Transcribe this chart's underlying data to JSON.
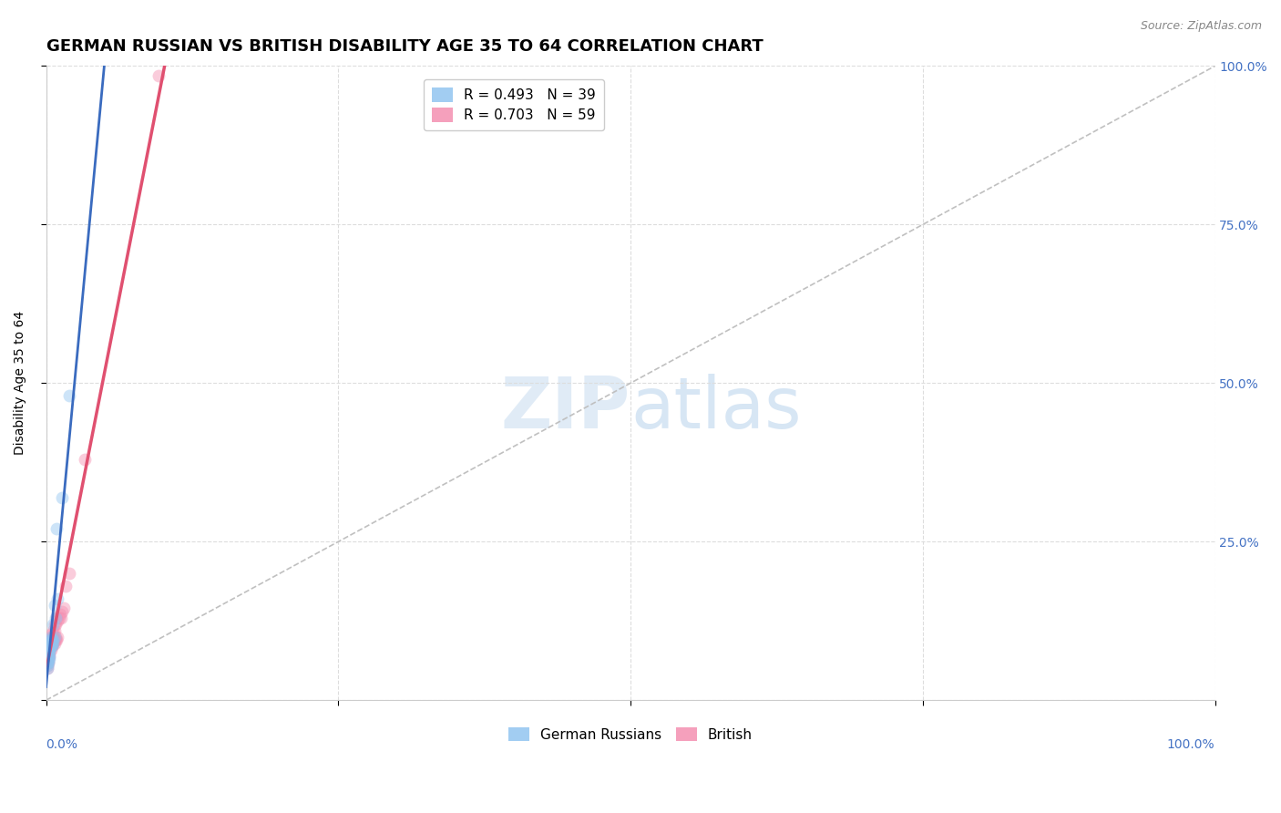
{
  "title": "GERMAN RUSSIAN VS BRITISH DISABILITY AGE 35 TO 64 CORRELATION CHART",
  "source": "Source: ZipAtlas.com",
  "ylabel": "Disability Age 35 to 64",
  "watermark": "ZIPatlas",
  "legend_corr": [
    {
      "label": "R = 0.493   N = 39",
      "color": "#92C5F0"
    },
    {
      "label": "R = 0.703   N = 59",
      "color": "#F48FB1"
    }
  ],
  "legend_scatter": [
    {
      "label": "German Russians",
      "color": "#92C5F0"
    },
    {
      "label": "British",
      "color": "#F48FB1"
    }
  ],
  "german_russian_color": "#92C5F0",
  "british_color": "#F48FB1",
  "trendline_german_color": "#3A6BBF",
  "trendline_british_color": "#E05070",
  "diagonal_color": "#C0C0C0",
  "background_color": "#FFFFFF",
  "grid_color": "#DDDDDD",
  "right_axis_color": "#4472C4",
  "xlim": [
    0.0,
    1.0
  ],
  "ylim": [
    0.0,
    1.0
  ],
  "german_russian_x": [
    0.001,
    0.001,
    0.001,
    0.001,
    0.001,
    0.001,
    0.002,
    0.002,
    0.002,
    0.002,
    0.002,
    0.002,
    0.002,
    0.002,
    0.003,
    0.003,
    0.003,
    0.003,
    0.003,
    0.003,
    0.003,
    0.003,
    0.004,
    0.004,
    0.004,
    0.004,
    0.005,
    0.005,
    0.005,
    0.006,
    0.006,
    0.006,
    0.007,
    0.007,
    0.008,
    0.009,
    0.01,
    0.014,
    0.02
  ],
  "german_russian_y": [
    0.05,
    0.055,
    0.06,
    0.06,
    0.065,
    0.07,
    0.06,
    0.065,
    0.07,
    0.075,
    0.08,
    0.08,
    0.085,
    0.09,
    0.065,
    0.07,
    0.075,
    0.08,
    0.085,
    0.085,
    0.09,
    0.095,
    0.085,
    0.09,
    0.095,
    0.1,
    0.085,
    0.09,
    0.095,
    0.09,
    0.095,
    0.12,
    0.1,
    0.15,
    0.13,
    0.27,
    0.16,
    0.32,
    0.48
  ],
  "british_x": [
    0.001,
    0.001,
    0.001,
    0.001,
    0.001,
    0.001,
    0.001,
    0.001,
    0.001,
    0.001,
    0.001,
    0.002,
    0.002,
    0.002,
    0.002,
    0.002,
    0.002,
    0.002,
    0.002,
    0.002,
    0.002,
    0.003,
    0.003,
    0.003,
    0.003,
    0.003,
    0.004,
    0.004,
    0.004,
    0.004,
    0.004,
    0.005,
    0.005,
    0.005,
    0.005,
    0.006,
    0.006,
    0.006,
    0.006,
    0.007,
    0.007,
    0.007,
    0.007,
    0.008,
    0.008,
    0.008,
    0.009,
    0.009,
    0.01,
    0.01,
    0.011,
    0.012,
    0.013,
    0.014,
    0.015,
    0.017,
    0.02,
    0.033,
    0.096
  ],
  "british_y": [
    0.05,
    0.055,
    0.06,
    0.065,
    0.065,
    0.07,
    0.07,
    0.075,
    0.075,
    0.08,
    0.08,
    0.06,
    0.065,
    0.07,
    0.075,
    0.08,
    0.085,
    0.085,
    0.09,
    0.09,
    0.095,
    0.07,
    0.075,
    0.085,
    0.09,
    0.095,
    0.08,
    0.085,
    0.09,
    0.095,
    0.1,
    0.085,
    0.09,
    0.095,
    0.105,
    0.09,
    0.095,
    0.1,
    0.11,
    0.09,
    0.095,
    0.11,
    0.12,
    0.095,
    0.1,
    0.12,
    0.095,
    0.13,
    0.1,
    0.125,
    0.13,
    0.135,
    0.13,
    0.14,
    0.145,
    0.18,
    0.2,
    0.38,
    0.985
  ],
  "marker_size": 100,
  "marker_alpha": 0.45,
  "title_fontsize": 13,
  "label_fontsize": 10,
  "tick_fontsize": 10
}
